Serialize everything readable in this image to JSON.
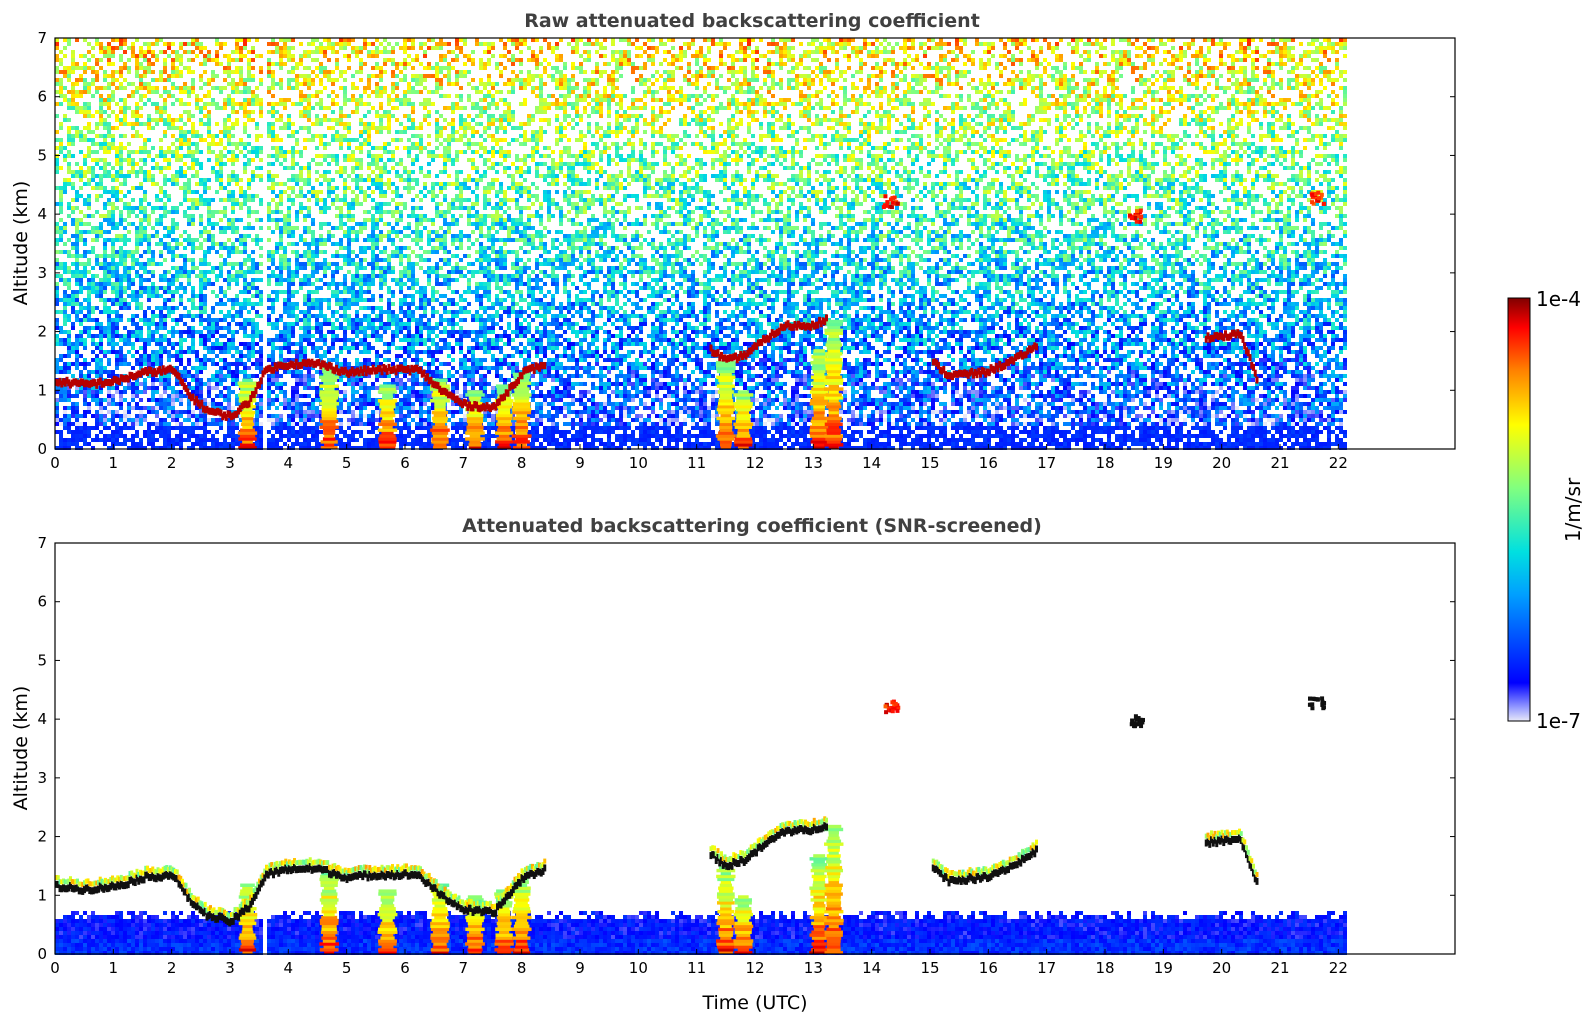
{
  "chart_data": [
    {
      "type": "heatmap",
      "title": "Raw attenuated backscattering coefficient",
      "xlabel": "",
      "ylabel": "Altitude (km)",
      "xlim": [
        0,
        24
      ],
      "ylim": [
        0,
        7
      ],
      "x_data_end": 22.1,
      "xticks": [
        "0",
        "1",
        "2",
        "3",
        "4",
        "5",
        "6",
        "7",
        "8",
        "9",
        "10",
        "11",
        "12",
        "13",
        "14",
        "15",
        "16",
        "17",
        "18",
        "19",
        "20",
        "21",
        "22"
      ],
      "yticks": [
        "0",
        "1",
        "2",
        "3",
        "4",
        "5",
        "6",
        "7"
      ],
      "screened": false,
      "colormap": "jet",
      "cloud_layer_km": [
        [
          0.0,
          1.15
        ],
        [
          0.5,
          1.1
        ],
        [
          1.0,
          1.15
        ],
        [
          1.5,
          1.3
        ],
        [
          2.0,
          1.35
        ],
        [
          2.3,
          0.9
        ],
        [
          2.6,
          0.65
        ],
        [
          3.0,
          0.55
        ],
        [
          3.3,
          0.8
        ],
        [
          3.6,
          1.35
        ],
        [
          4.0,
          1.45
        ],
        [
          4.5,
          1.45
        ],
        [
          5.0,
          1.3
        ],
        [
          5.5,
          1.35
        ],
        [
          6.2,
          1.35
        ],
        [
          6.6,
          1.0
        ],
        [
          7.0,
          0.75
        ],
        [
          7.5,
          0.7
        ],
        [
          8.0,
          1.3
        ],
        [
          8.4,
          1.45
        ],
        [
          11.2,
          1.7
        ],
        [
          11.5,
          1.5
        ],
        [
          11.8,
          1.6
        ],
        [
          12.2,
          1.9
        ],
        [
          12.5,
          2.1
        ],
        [
          12.9,
          2.1
        ],
        [
          13.2,
          2.2
        ],
        [
          15.0,
          1.5
        ],
        [
          15.3,
          1.25
        ],
        [
          15.9,
          1.3
        ],
        [
          16.4,
          1.5
        ],
        [
          16.8,
          1.75
        ],
        [
          19.7,
          1.9
        ],
        [
          20.3,
          1.95
        ],
        [
          20.6,
          1.15
        ]
      ],
      "plumes": [
        {
          "t": 3.3,
          "top_km": 1.2
        },
        {
          "t": 4.7,
          "top_km": 1.4
        },
        {
          "t": 5.7,
          "top_km": 1.1
        },
        {
          "t": 6.6,
          "top_km": 1.2
        },
        {
          "t": 7.2,
          "top_km": 1.0
        },
        {
          "t": 7.7,
          "top_km": 1.1
        },
        {
          "t": 8.0,
          "top_km": 1.3
        },
        {
          "t": 11.5,
          "top_km": 1.5
        },
        {
          "t": 11.8,
          "top_km": 1.0
        },
        {
          "t": 13.1,
          "top_km": 1.7
        },
        {
          "t": 13.35,
          "top_km": 2.2
        }
      ],
      "elevated_features": [
        {
          "t": 14.3,
          "alt_km": 4.25
        },
        {
          "t": 18.5,
          "alt_km": 4.0
        },
        {
          "t": 21.6,
          "alt_km": 4.3
        }
      ],
      "data_gap_t": 3.55
    },
    {
      "type": "heatmap",
      "title": "Attenuated backscattering coefficient (SNR-screened)",
      "xlabel": "Time (UTC)",
      "ylabel": "Altitude (km)",
      "xlim": [
        0,
        24
      ],
      "ylim": [
        0,
        7
      ],
      "x_data_end": 22.1,
      "xticks": [
        "0",
        "1",
        "2",
        "3",
        "4",
        "5",
        "6",
        "7",
        "8",
        "9",
        "10",
        "11",
        "12",
        "13",
        "14",
        "15",
        "16",
        "17",
        "18",
        "19",
        "20",
        "21",
        "22"
      ],
      "yticks": [
        "0",
        "1",
        "2",
        "3",
        "4",
        "5",
        "6",
        "7"
      ],
      "screened": true,
      "colormap": "jet"
    }
  ],
  "colorbar": {
    "max_label": "1e-4",
    "min_label": "1e-7",
    "unit_label": "1/m/sr",
    "scale": "log",
    "range": [
      1e-07,
      0.0001
    ]
  }
}
